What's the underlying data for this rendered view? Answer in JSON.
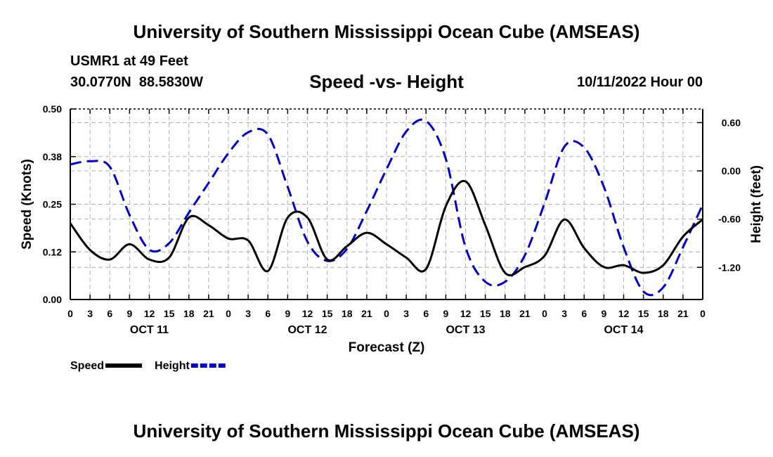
{
  "titles": {
    "top": "University of Southern Mississippi Ocean Cube (AMSEAS)",
    "bottom": "University of Southern Mississippi Ocean Cube (AMSEAS)"
  },
  "station": {
    "name": "USMR1 at 49 Feet",
    "lat": "30.0770N",
    "lon": "88.5830W",
    "date": "10/11/2022 Hour 00"
  },
  "chart_data": {
    "type": "line",
    "title": "Speed -vs- Height",
    "xlabel": "Forecast (Z)",
    "ylabel_left": "Speed (Knots)",
    "ylabel_right": "Height (feet)",
    "xlim": [
      0,
      96
    ],
    "ylim_left": [
      0,
      0.5
    ],
    "ylim_right": [
      -1.6,
      0.77
    ],
    "x_ticks": [
      0,
      3,
      6,
      9,
      12,
      15,
      18,
      21,
      24,
      27,
      30,
      33,
      36,
      39,
      42,
      45,
      48,
      51,
      54,
      57,
      60,
      63,
      66,
      69,
      72,
      75,
      78,
      81,
      84,
      87,
      90,
      93,
      96
    ],
    "x_tick_labels": [
      "0",
      "3",
      "6",
      "9",
      "12",
      "15",
      "18",
      "21",
      "0",
      "3",
      "6",
      "9",
      "12",
      "15",
      "18",
      "21",
      "0",
      "3",
      "6",
      "9",
      "12",
      "15",
      "18",
      "21",
      "0",
      "3",
      "6",
      "9",
      "12",
      "15",
      "18",
      "21",
      "0"
    ],
    "day_labels": [
      {
        "x": 12,
        "label": "OCT 11"
      },
      {
        "x": 36,
        "label": "OCT 12"
      },
      {
        "x": 60,
        "label": "OCT 13"
      },
      {
        "x": 84,
        "label": "OCT 14"
      }
    ],
    "left_ticks": [
      {
        "value": 0.0,
        "label": "0.00"
      },
      {
        "value": 0.125,
        "label": "0.12"
      },
      {
        "value": 0.25,
        "label": "0.25"
      },
      {
        "value": 0.375,
        "label": "0.38"
      },
      {
        "value": 0.5,
        "label": "0.50"
      }
    ],
    "right_ticks": [
      {
        "value": 0.6,
        "label": "0.60"
      },
      {
        "value": 0.0,
        "label": "0.00"
      },
      {
        "value": -0.6,
        "label": "-0.60"
      },
      {
        "value": -1.2,
        "label": "-1.20"
      }
    ],
    "grid": true,
    "legend": [
      {
        "name": "Speed",
        "color": "#000000",
        "dash": "solid"
      },
      {
        "name": "Height",
        "color": "#0000cc",
        "dash": "dashed"
      }
    ],
    "series": [
      {
        "name": "Speed",
        "axis": "left",
        "color": "#000000",
        "x": [
          0,
          3,
          6,
          9,
          12,
          15,
          18,
          21,
          24,
          27,
          30,
          33,
          36,
          39,
          42,
          45,
          48,
          51,
          54,
          57,
          60,
          63,
          66,
          69,
          72,
          75,
          78,
          81,
          84,
          87,
          90,
          93,
          96
        ],
        "values": [
          0.2,
          0.13,
          0.105,
          0.145,
          0.105,
          0.11,
          0.215,
          0.195,
          0.16,
          0.155,
          0.075,
          0.215,
          0.215,
          0.105,
          0.14,
          0.175,
          0.145,
          0.11,
          0.08,
          0.245,
          0.31,
          0.195,
          0.07,
          0.085,
          0.115,
          0.21,
          0.135,
          0.085,
          0.09,
          0.07,
          0.09,
          0.165,
          0.21
        ]
      },
      {
        "name": "Height",
        "axis": "right",
        "color": "#0000cc",
        "x": [
          0,
          3,
          6,
          9,
          12,
          15,
          18,
          21,
          24,
          27,
          30,
          33,
          36,
          39,
          42,
          45,
          48,
          51,
          54,
          57,
          60,
          63,
          66,
          69,
          72,
          75,
          78,
          81,
          84,
          87,
          90,
          93,
          96
        ],
        "values": [
          0.08,
          0.12,
          0.05,
          -0.55,
          -0.98,
          -0.9,
          -0.52,
          -0.15,
          0.22,
          0.48,
          0.45,
          -0.2,
          -0.88,
          -1.12,
          -0.97,
          -0.5,
          0.02,
          0.49,
          0.62,
          0.15,
          -0.95,
          -1.38,
          -1.38,
          -1.05,
          -0.4,
          0.3,
          0.29,
          -0.2,
          -0.95,
          -1.5,
          -1.45,
          -0.95,
          -0.42
        ]
      }
    ]
  }
}
